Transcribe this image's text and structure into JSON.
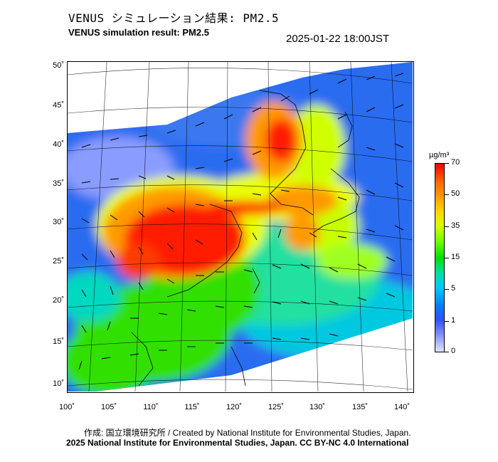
{
  "header": {
    "title_jp": "VENUS シミュレーション結果: PM2.5",
    "title_en": "VENUS simulation result: PM2.5",
    "timestamp": "2025-01-22 18:00JST"
  },
  "map": {
    "lat_labels": [
      "50˚",
      "45˚",
      "40˚",
      "35˚",
      "30˚",
      "25˚",
      "20˚",
      "15˚",
      "10˚"
    ],
    "lon_labels": [
      "100˚",
      "105˚",
      "110˚",
      "115˚",
      "120˚",
      "125˚",
      "130˚",
      "135˚",
      "140˚"
    ],
    "lat_range": [
      10,
      50
    ],
    "lon_range": [
      100,
      140
    ],
    "colors": {
      "very_high": "#ff1a00",
      "high": "#ff9a00",
      "elevated": "#e8ff00",
      "moderate": "#30e000",
      "low": "#00d8c0",
      "very_low": "#2a6cf0",
      "minimal": "#b8c4ff"
    }
  },
  "colorbar": {
    "unit": "µg/m³",
    "labels": [
      "70",
      "50",
      "35",
      "15",
      "5",
      "1",
      "0"
    ]
  },
  "footer": {
    "credit_jp_en": "作成: 国立環境研究所 / Created by National Institute for Environmental Studies, Japan.",
    "copyright": "2025 National Institute for Environmental Studies, Japan. CC BY-NC 4.0 International"
  }
}
